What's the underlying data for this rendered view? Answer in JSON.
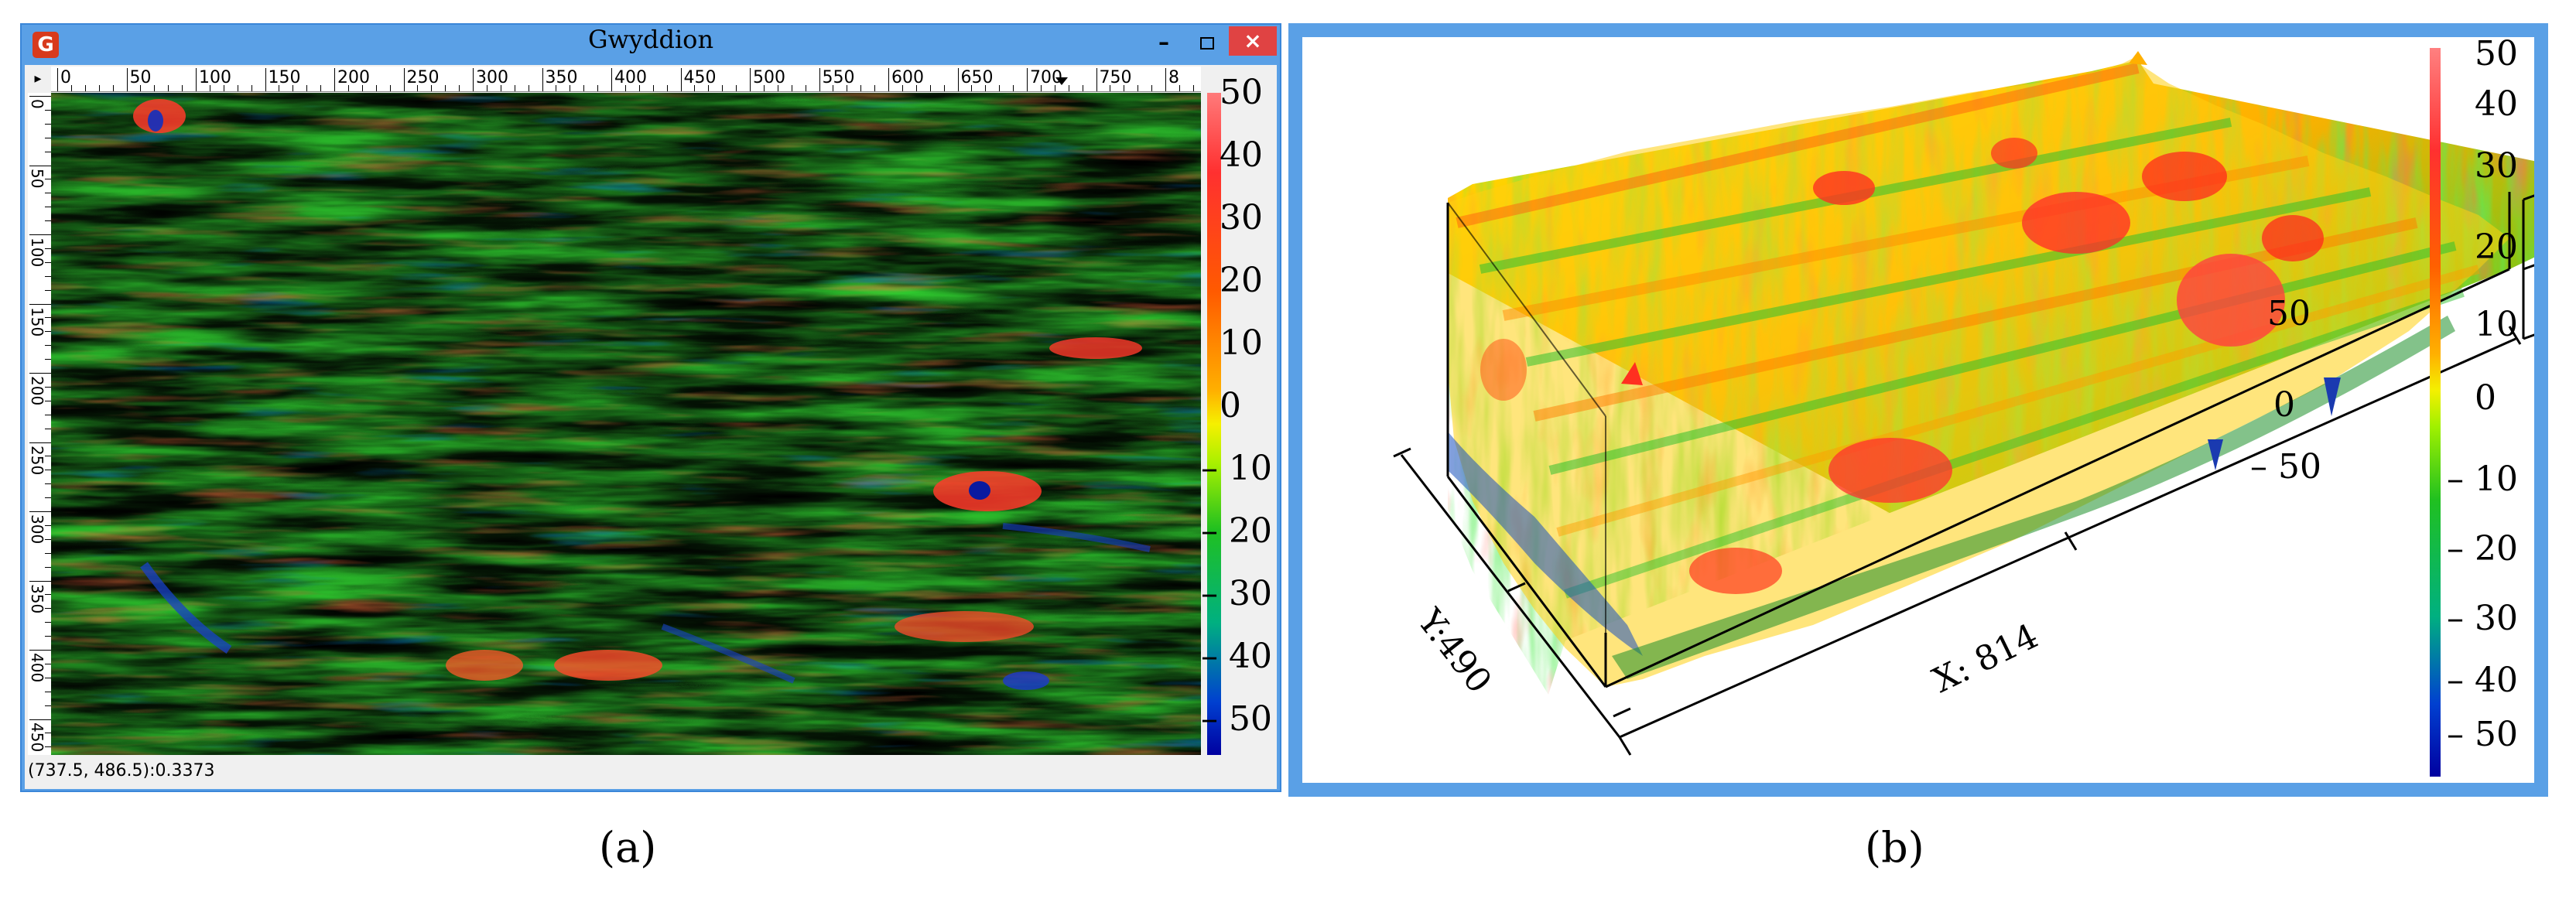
{
  "window_a": {
    "title": "Gwyddion",
    "app_icon": "gwyddion-app-icon",
    "controls": {
      "minimize": "–",
      "maximize": "maximize-icon",
      "close": "×"
    },
    "corner_arrow": "▸",
    "h_ruler": [
      "0",
      "50",
      "100",
      "150",
      "200",
      "250",
      "300",
      "350",
      "400",
      "450",
      "500",
      "550",
      "600",
      "650",
      "700",
      "750",
      "8"
    ],
    "v_ruler": [
      "0",
      "50",
      "100",
      "150",
      "200",
      "250",
      "300",
      "350",
      "400",
      "450"
    ],
    "status": "(737.5, 486.5):0.3373",
    "scale_labels": [
      "50",
      "40",
      "30",
      "20",
      "10",
      "0",
      "– 10",
      "– 20",
      "– 30",
      "– 40",
      "– 50"
    ]
  },
  "panel_b": {
    "axis_x": "X: 814",
    "axis_y": "Y:490",
    "z_ticks": [
      "50",
      "0",
      "– 50"
    ],
    "scale_labels": [
      "50",
      "40",
      "30",
      "20",
      "10",
      "0",
      "– 10",
      "– 20",
      "– 30",
      "– 40",
      "– 50"
    ]
  },
  "captions": {
    "a": "(a)",
    "b": "(b)"
  },
  "colors": {
    "title_bar": "#5aa0e6",
    "close_button": "#e04343",
    "frame_b": "#5aa0e6"
  }
}
